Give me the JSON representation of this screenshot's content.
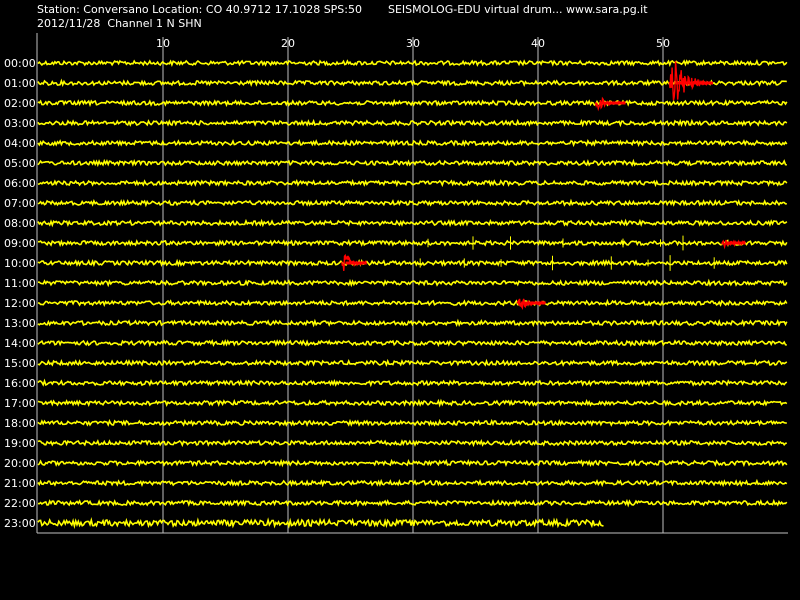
{
  "header": {
    "station_line": "Station: Conversano Location: CO 40.9712 17.1028 SPS:50",
    "product_line": "SEISMOLOG-EDU virtual drum... www.sara.pg.it",
    "date_channel_line": "2012/11/28  Channel 1 N SHN"
  },
  "colors": {
    "background": "#000000",
    "trace": "#ffff00",
    "event": "#ff0000",
    "grid": "#bfbfbf",
    "text": "#ffffff"
  },
  "chart_data": {
    "type": "line",
    "title": "",
    "xlabel": "",
    "ylabel": "",
    "x_ticks": [
      10,
      20,
      30,
      40,
      50
    ],
    "xlim": [
      0,
      60
    ],
    "grid": "vertical",
    "rows": [
      {
        "label": "00:00",
        "end_minute": 60,
        "events": []
      },
      {
        "label": "01:00",
        "end_minute": 60,
        "events": [
          {
            "start_minute": 50.5,
            "end_minute": 54.0,
            "amplitude": 24
          }
        ]
      },
      {
        "label": "02:00",
        "end_minute": 60,
        "events": [
          {
            "start_minute": 44.6,
            "end_minute": 47.0,
            "amplitude": 7
          }
        ]
      },
      {
        "label": "03:00",
        "end_minute": 60,
        "events": []
      },
      {
        "label": "04:00",
        "end_minute": 60,
        "events": []
      },
      {
        "label": "05:00",
        "end_minute": 60,
        "events": []
      },
      {
        "label": "06:00",
        "end_minute": 60,
        "events": []
      },
      {
        "label": "07:00",
        "end_minute": 60,
        "events": []
      },
      {
        "label": "08:00",
        "end_minute": 60,
        "events": []
      },
      {
        "label": "09:00",
        "end_minute": 60,
        "events": [
          {
            "start_minute": 54.7,
            "end_minute": 56.6,
            "amplitude": 4
          }
        ]
      },
      {
        "label": "10:00",
        "end_minute": 60,
        "events": [
          {
            "start_minute": 24.3,
            "end_minute": 26.3,
            "amplitude": 12
          }
        ]
      },
      {
        "label": "11:00",
        "end_minute": 60,
        "events": []
      },
      {
        "label": "12:00",
        "end_minute": 60,
        "events": [
          {
            "start_minute": 38.3,
            "end_minute": 40.6,
            "amplitude": 7
          }
        ]
      },
      {
        "label": "13:00",
        "end_minute": 60,
        "events": []
      },
      {
        "label": "14:00",
        "end_minute": 60,
        "events": []
      },
      {
        "label": "15:00",
        "end_minute": 60,
        "events": []
      },
      {
        "label": "16:00",
        "end_minute": 60,
        "events": []
      },
      {
        "label": "17:00",
        "end_minute": 60,
        "events": []
      },
      {
        "label": "18:00",
        "end_minute": 60,
        "events": []
      },
      {
        "label": "19:00",
        "end_minute": 60,
        "events": []
      },
      {
        "label": "20:00",
        "end_minute": 60,
        "events": []
      },
      {
        "label": "21:00",
        "end_minute": 60,
        "events": []
      },
      {
        "label": "22:00",
        "end_minute": 60,
        "events": []
      },
      {
        "label": "23:00",
        "end_minute": 45.3,
        "events": []
      }
    ]
  }
}
